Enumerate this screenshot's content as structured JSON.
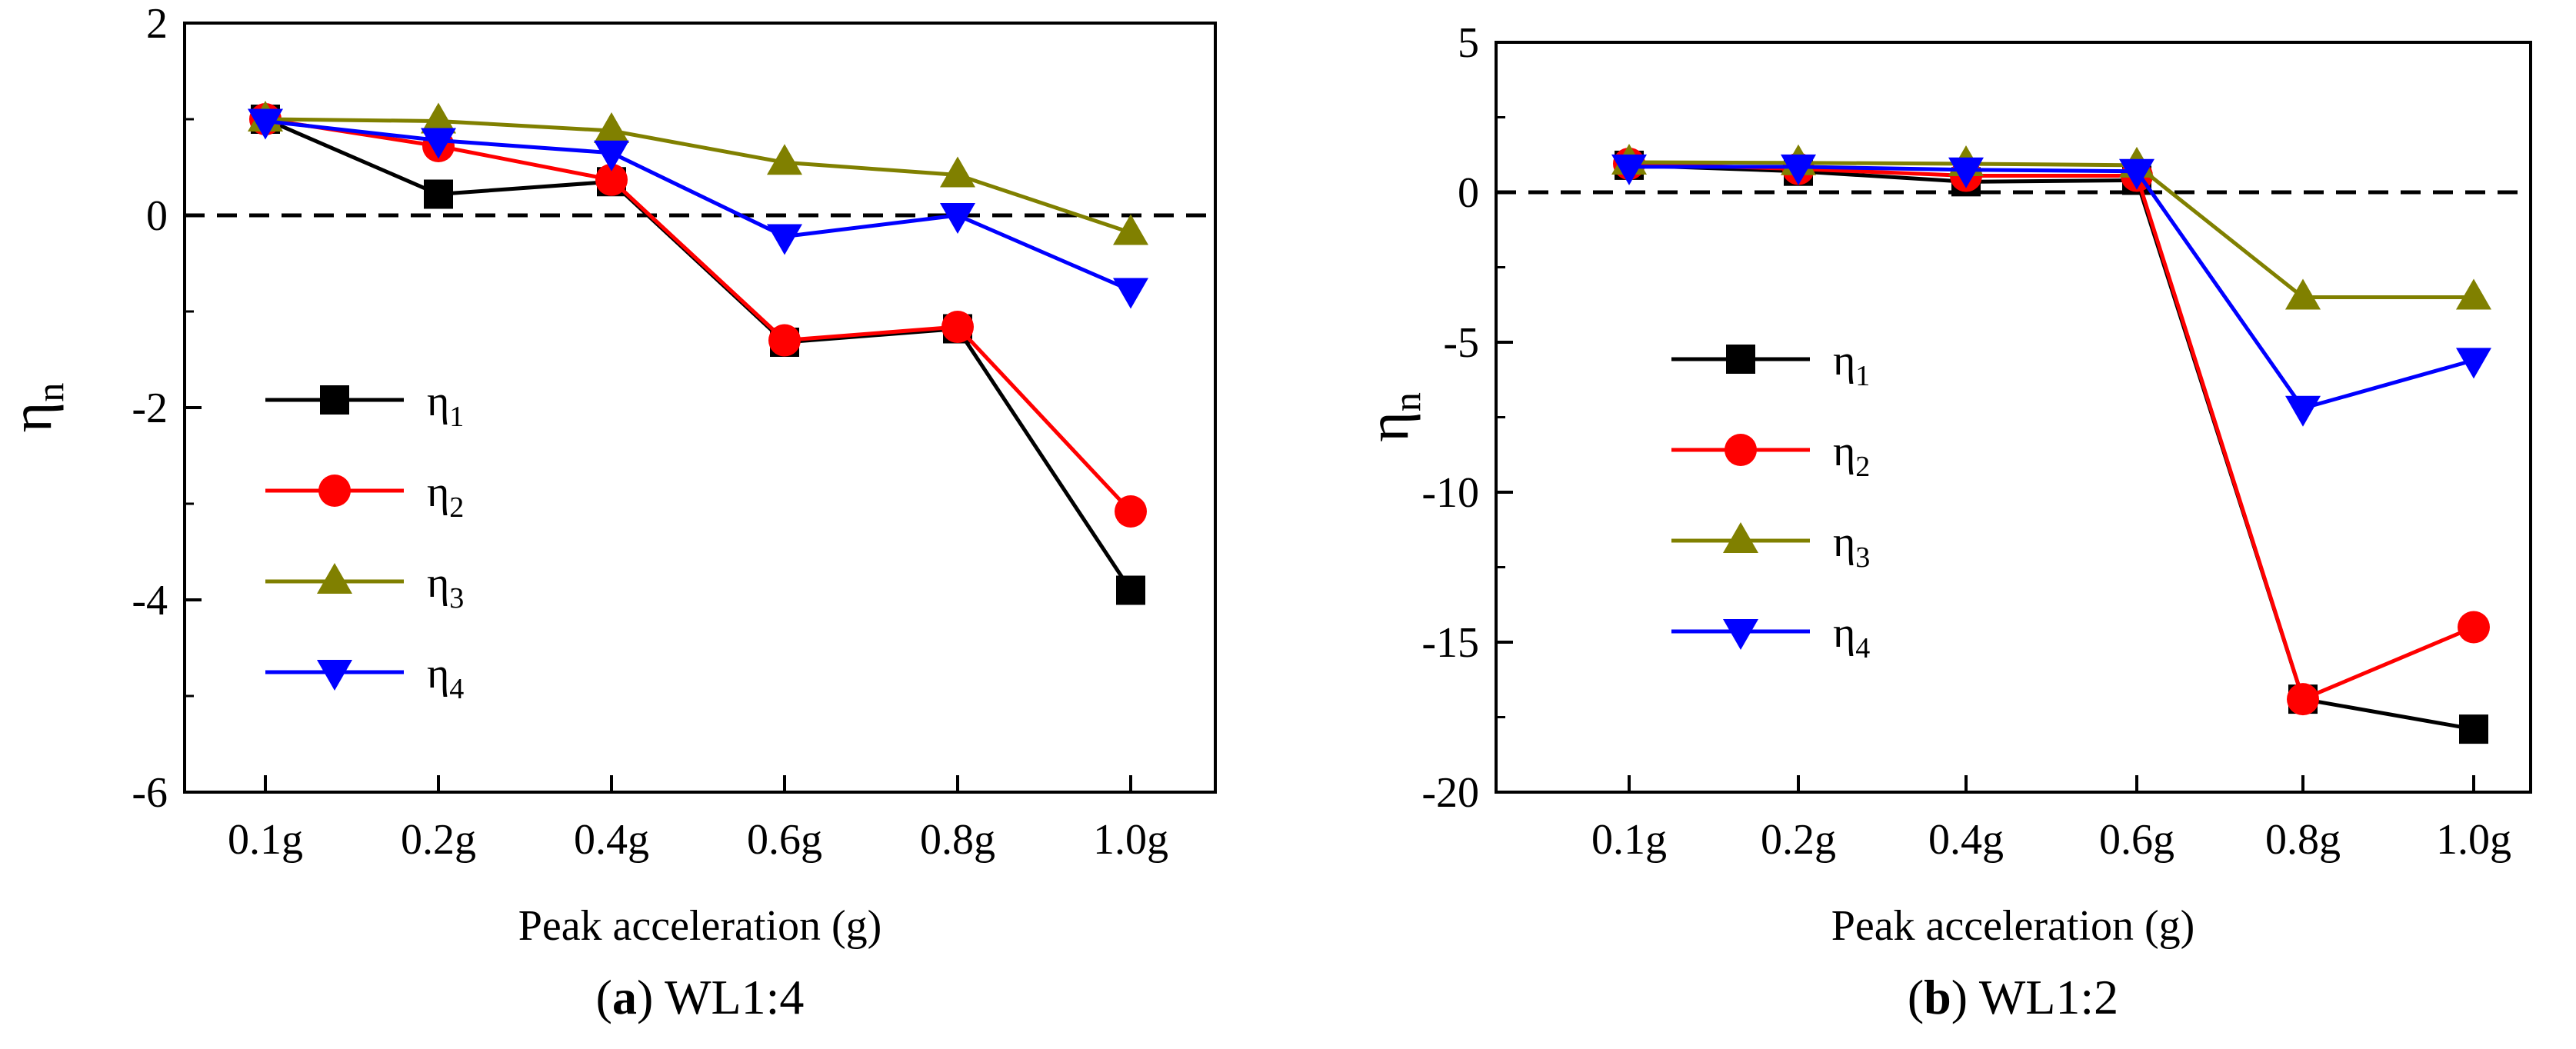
{
  "chart_data": [
    {
      "type": "line",
      "caption": {
        "letter": "a",
        "text": "WL1:4"
      },
      "xlabel": "Peak acceleration (g)",
      "ylabel": {
        "main": "η",
        "sub": "n"
      },
      "categories": [
        "0.1g",
        "0.2g",
        "0.4g",
        "0.6g",
        "0.8g",
        "1.0g"
      ],
      "ylim": [
        -6,
        2
      ],
      "yticks": [
        2,
        0,
        -2,
        -4,
        -6
      ],
      "reference_line": {
        "y": 0,
        "style": "dashed"
      },
      "legend_position": "left",
      "series": [
        {
          "name": "η",
          "sub": "1",
          "color": "#000000",
          "marker": "square",
          "values": [
            1.0,
            0.22,
            0.35,
            -1.32,
            -1.18,
            -3.9
          ]
        },
        {
          "name": "η",
          "sub": "2",
          "color": "#ff0000",
          "marker": "circle",
          "values": [
            1.0,
            0.72,
            0.37,
            -1.3,
            -1.16,
            -3.08
          ]
        },
        {
          "name": "η",
          "sub": "3",
          "color": "#808000",
          "marker": "triangle-up",
          "values": [
            1.0,
            0.98,
            0.88,
            0.55,
            0.42,
            -0.18
          ]
        },
        {
          "name": "η",
          "sub": "4",
          "color": "#0000ff",
          "marker": "triangle-down",
          "values": [
            0.98,
            0.78,
            0.65,
            -0.22,
            0.0,
            -0.78
          ]
        }
      ]
    },
    {
      "type": "line",
      "caption": {
        "letter": "b",
        "text": "WL1:2"
      },
      "xlabel": "Peak acceleration (g)",
      "ylabel": {
        "main": "η",
        "sub": "n"
      },
      "categories": [
        "0.1g",
        "0.2g",
        "0.4g",
        "0.6g",
        "0.8g",
        "1.0g"
      ],
      "ylim": [
        -20,
        5
      ],
      "yticks": [
        5,
        0,
        -5,
        -10,
        -15,
        -20
      ],
      "reference_line": {
        "y": 0,
        "style": "dashed"
      },
      "legend_position": "left",
      "series": [
        {
          "name": "η",
          "sub": "1",
          "color": "#000000",
          "marker": "square",
          "values": [
            0.9,
            0.7,
            0.35,
            0.4,
            -16.9,
            -17.9
          ]
        },
        {
          "name": "η",
          "sub": "2",
          "color": "#ff0000",
          "marker": "circle",
          "values": [
            0.95,
            0.78,
            0.55,
            0.55,
            -16.9,
            -14.5
          ]
        },
        {
          "name": "η",
          "sub": "3",
          "color": "#808000",
          "marker": "triangle-up",
          "values": [
            1.0,
            0.98,
            0.95,
            0.9,
            -3.5,
            -3.5
          ]
        },
        {
          "name": "η",
          "sub": "4",
          "color": "#0000ff",
          "marker": "triangle-down",
          "values": [
            0.85,
            0.85,
            0.75,
            0.7,
            -7.2,
            -5.6
          ]
        }
      ]
    }
  ]
}
